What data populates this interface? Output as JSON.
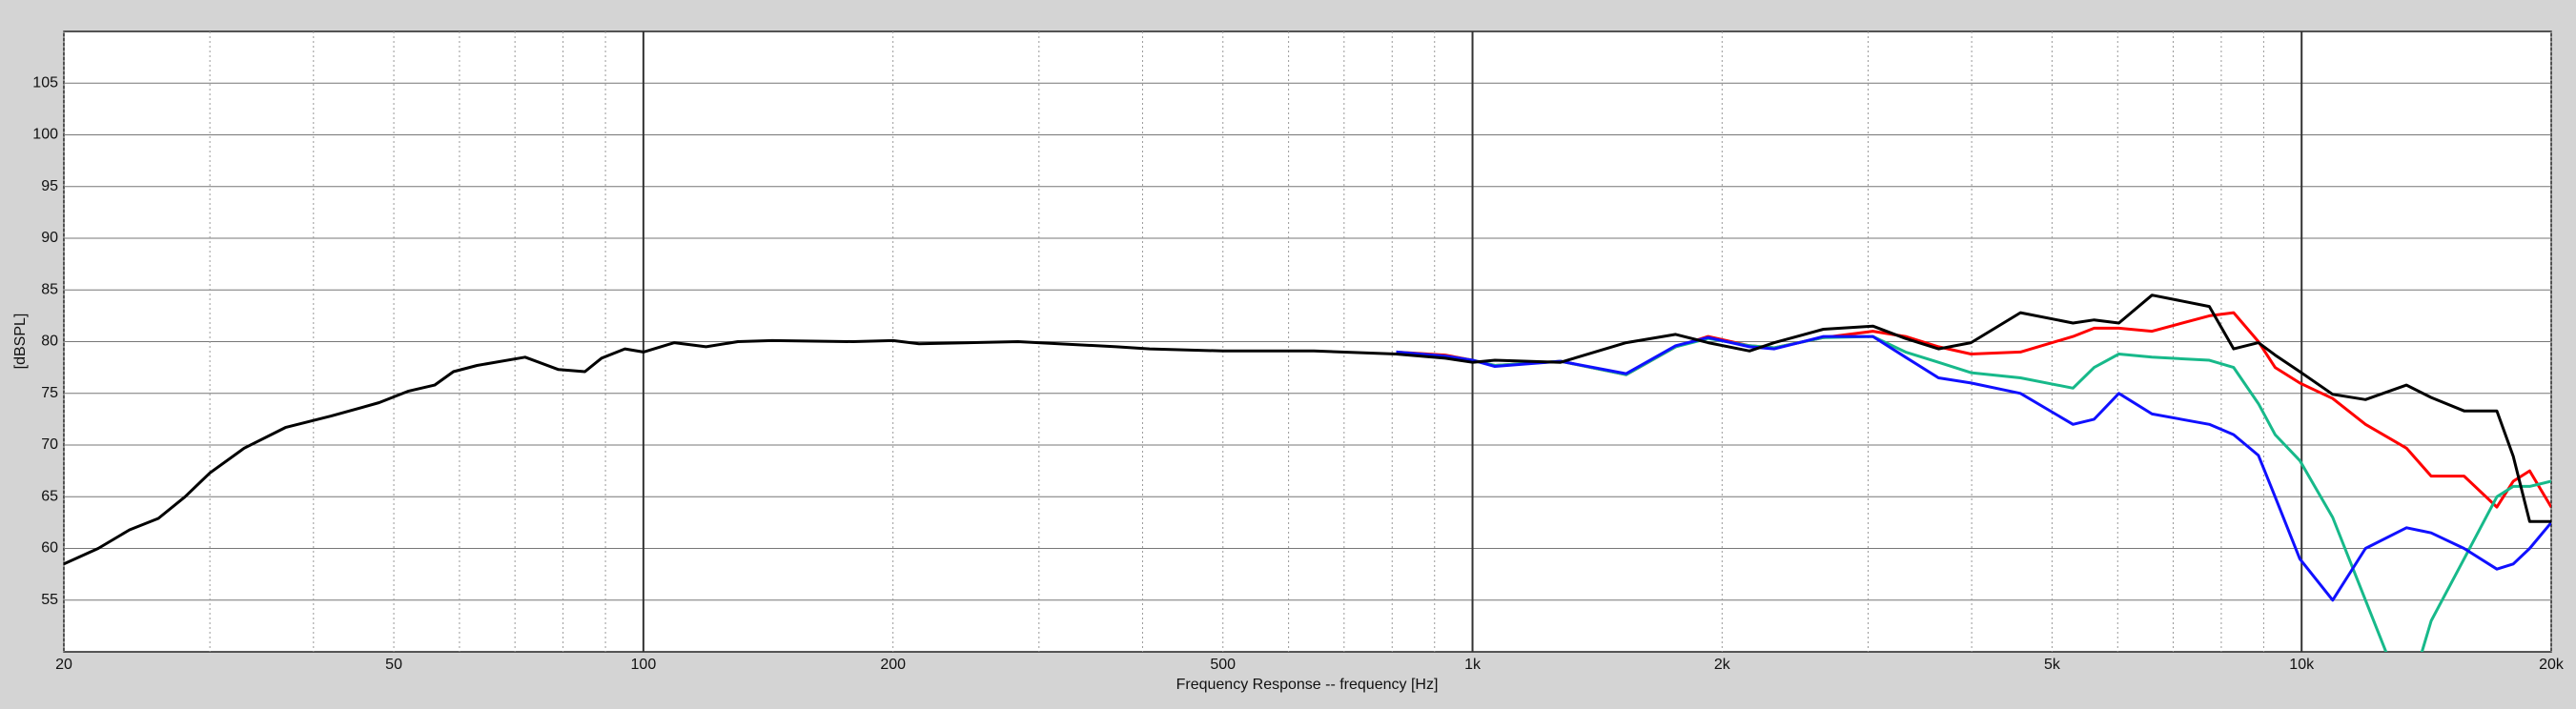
{
  "chart_data": {
    "type": "line",
    "xlabel": "Frequency Response -- frequency [Hz]",
    "ylabel": "[dBSPL]",
    "log_x": true,
    "grid": true,
    "xlim": [
      20,
      20000
    ],
    "ylim": [
      50,
      110
    ],
    "xticks": [
      20,
      50,
      100,
      200,
      500,
      {
        "value": 1000,
        "label": "1k"
      },
      {
        "value": 2000,
        "label": "2k"
      },
      {
        "value": 5000,
        "label": "5k"
      },
      {
        "value": 10000,
        "label": "10k"
      },
      {
        "value": 20000,
        "label": "20k"
      }
    ],
    "xminorticks": [
      30,
      40,
      60,
      70,
      80,
      90,
      300,
      400,
      600,
      700,
      800,
      900,
      3000,
      4000,
      6000,
      7000,
      8000,
      9000
    ],
    "yticks": [
      55,
      60,
      65,
      70,
      75,
      80,
      85,
      90,
      95,
      100,
      105
    ],
    "x": [
      20,
      22,
      24,
      26,
      28,
      30,
      33,
      37,
      42,
      48,
      52,
      56,
      59,
      63,
      72,
      79,
      85,
      89,
      95,
      100,
      109,
      119,
      130,
      143,
      179,
      200,
      215,
      283,
      372,
      408,
      500,
      644,
      809,
      927,
      1000,
      1064,
      1277,
      1532,
      1758,
      1924,
      2158,
      2312,
      2650,
      3040,
      3328,
      3648,
      3992,
      4580,
      5300,
      5620,
      6020,
      6600,
      7740,
      8280,
      8870,
      9290,
      9950,
      10900,
      11940,
      13380,
      14330,
      15700,
      17200,
      18000,
      18840,
      20000
    ],
    "series": [
      {
        "color": "#ff0000",
        "values": [
          null,
          null,
          null,
          null,
          null,
          null,
          null,
          null,
          null,
          null,
          null,
          null,
          null,
          null,
          null,
          null,
          null,
          null,
          null,
          null,
          null,
          null,
          null,
          null,
          null,
          null,
          null,
          null,
          null,
          null,
          null,
          null,
          79,
          78.7,
          78.2,
          77.7,
          78.1,
          76.8,
          79.5,
          80.5,
          79.6,
          79.4,
          80.4,
          81,
          80.5,
          79.5,
          78.8,
          79,
          80.5,
          81.3,
          81.3,
          81,
          82.5,
          82.8,
          80,
          77.5,
          76,
          74.5,
          72,
          69.7,
          67,
          67,
          64,
          66.5,
          67.5,
          64
        ]
      },
      {
        "color": "#17b98a",
        "values": [
          null,
          null,
          null,
          null,
          null,
          null,
          null,
          null,
          null,
          null,
          null,
          null,
          null,
          null,
          null,
          null,
          null,
          null,
          null,
          null,
          null,
          null,
          null,
          null,
          null,
          null,
          null,
          null,
          null,
          null,
          null,
          null,
          79,
          78.6,
          78.2,
          77.7,
          78.1,
          76.8,
          79.5,
          80.3,
          79.6,
          79.4,
          80.4,
          80.5,
          79,
          78,
          77,
          76.5,
          75.5,
          77.5,
          78.8,
          78.5,
          78.2,
          77.5,
          74,
          71,
          68.5,
          63,
          55,
          45,
          53,
          59,
          65,
          66,
          66,
          66.5
        ]
      },
      {
        "color": "#1010ff",
        "values": [
          null,
          null,
          null,
          null,
          null,
          null,
          null,
          null,
          null,
          null,
          null,
          null,
          null,
          null,
          null,
          null,
          null,
          null,
          null,
          null,
          null,
          null,
          null,
          null,
          null,
          null,
          null,
          null,
          null,
          null,
          null,
          null,
          79,
          78.6,
          78.2,
          77.6,
          78.1,
          76.9,
          79.6,
          80.4,
          79.5,
          79.3,
          80.5,
          80.5,
          78.5,
          76.5,
          76,
          75,
          72,
          72.5,
          75,
          73,
          72,
          71,
          69,
          65,
          59,
          55,
          60,
          62,
          61.5,
          60,
          58,
          58.5,
          60,
          62.5
        ]
      },
      {
        "color": "#000000",
        "values": [
          58.5,
          60,
          61.8,
          62.9,
          65,
          67.3,
          69.7,
          71.7,
          72.8,
          74.1,
          75.2,
          75.8,
          77.1,
          77.7,
          78.5,
          77.3,
          77.1,
          78.4,
          79.3,
          79,
          79.9,
          79.5,
          80,
          80.1,
          80,
          80.1,
          79.8,
          80,
          79.5,
          79.3,
          79.1,
          79.1,
          78.8,
          78.4,
          78,
          78.2,
          78,
          79.9,
          80.7,
          79.9,
          79.1,
          79.9,
          81.2,
          81.5,
          80.3,
          79.3,
          79.9,
          82.8,
          81.8,
          82.1,
          81.8,
          84.5,
          83.4,
          79.3,
          79.9,
          78.7,
          77.1,
          74.9,
          74.4,
          75.8,
          74.6,
          73.3,
          73.3,
          68.9,
          62.6,
          62.6
        ]
      }
    ]
  }
}
